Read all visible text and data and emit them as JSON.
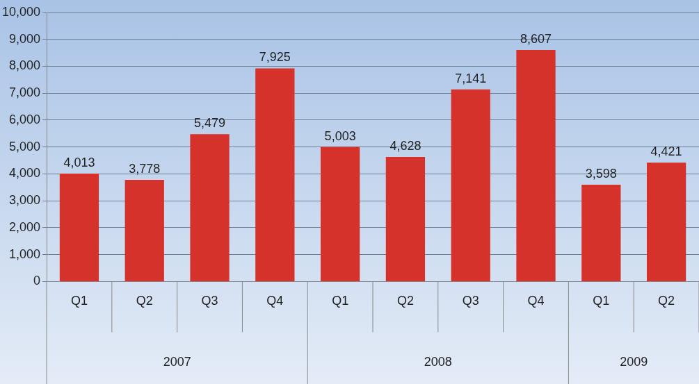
{
  "chart_data": {
    "type": "bar",
    "categories": [
      "Q1",
      "Q2",
      "Q3",
      "Q4",
      "Q1",
      "Q2",
      "Q3",
      "Q4",
      "Q1",
      "Q2"
    ],
    "values": [
      4013,
      3778,
      5479,
      7925,
      5003,
      4628,
      7141,
      8607,
      3598,
      4421
    ],
    "value_labels": [
      "4,013",
      "3,778",
      "5,479",
      "7,925",
      "5,003",
      "4,628",
      "7,141",
      "8,607",
      "3,598",
      "4,421"
    ],
    "color": "#d5322b",
    "ylim": [
      0,
      10000
    ],
    "yticks": [
      0,
      {
        "value": 1000,
        "label": "1,000"
      },
      {
        "value": 2000,
        "label": "2,000"
      },
      {
        "value": 3000,
        "label": "3,000"
      },
      {
        "value": 4000,
        "label": "4,000"
      },
      {
        "value": 5000,
        "label": "5,000"
      },
      {
        "value": 6000,
        "label": "6,000"
      },
      {
        "value": 7000,
        "label": "7,000"
      },
      {
        "value": 8000,
        "label": "8,000"
      },
      {
        "value": 9000,
        "label": "9,000"
      },
      {
        "value": 10000,
        "label": "10,000"
      }
    ],
    "grid": "y",
    "legend": false,
    "annotations": [
      "2007",
      "2008",
      "2009"
    ]
  }
}
